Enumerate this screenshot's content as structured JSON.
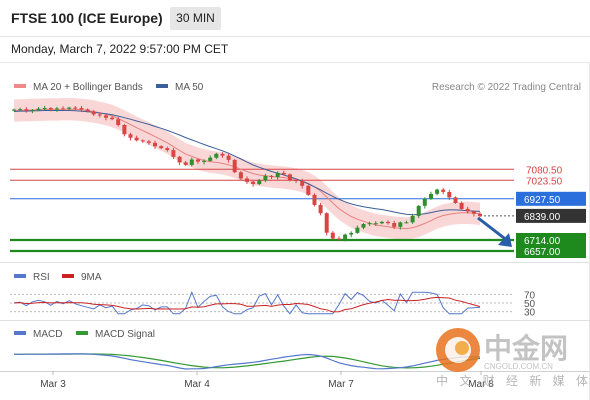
{
  "header": {
    "title": "FTSE 100 (ICE Europe)",
    "timeframe": "30 MIN",
    "datetime": "Monday, March 7, 2022 9:57:00 PM CET"
  },
  "price_panel": {
    "legend": [
      {
        "label": "MA 20 + Bollinger Bands",
        "color": "#f08a8a"
      },
      {
        "label": "MA 50",
        "color": "#3b5f9a"
      }
    ],
    "credit": "Research © 2022 Trading Central",
    "levels": [
      {
        "label": "7080.50",
        "value": 7080.5,
        "style": "resistance",
        "color": "#d94545"
      },
      {
        "label": "7023.50",
        "value": 7023.5,
        "style": "resistance",
        "color": "#d94545"
      },
      {
        "label": "6927.50",
        "value": 6927.5,
        "style": "pivot",
        "color": "#2a6fdb"
      },
      {
        "label": "6839.00",
        "value": 6839.0,
        "style": "last",
        "color": "#333333"
      },
      {
        "label": "6714.00",
        "value": 6714.0,
        "style": "support",
        "color": "#1e8a1e"
      },
      {
        "label": "6657.00",
        "value": 6657.0,
        "style": "support",
        "color": "#1e8a1e"
      }
    ]
  },
  "rsi_panel": {
    "legend": [
      {
        "label": "RSI",
        "color": "#5577cc"
      },
      {
        "label": "9MA",
        "color": "#cc2222"
      }
    ],
    "ticks": [
      "70",
      "50",
      "30"
    ]
  },
  "macd_panel": {
    "legend": [
      {
        "label": "MACD",
        "color": "#5577cc"
      },
      {
        "label": "MACD Signal",
        "color": "#339933"
      }
    ]
  },
  "x_axis": {
    "labels": [
      "Mar 3",
      "Mar 4",
      "Mar 7",
      "Mar 8"
    ]
  },
  "watermark": {
    "brand": "中金网",
    "url": "CNGOLD.COM.CN",
    "tagline": "中 文 财 经 新 媒 体"
  },
  "chart_data": {
    "type": "line",
    "title": "FTSE 100 (ICE Europe)",
    "timeframe": "30 MIN",
    "xlabel": "",
    "ylabel": "",
    "x_tick_labels": [
      "Mar 3",
      "Mar 4",
      "Mar 7",
      "Mar 8"
    ],
    "ylim": [
      6600,
      7450
    ],
    "close_series": [
      7390,
      7392,
      7385,
      7388,
      7395,
      7398,
      7392,
      7396,
      7394,
      7400,
      7398,
      7391,
      7380,
      7365,
      7360,
      7348,
      7340,
      7310,
      7262,
      7244,
      7230,
      7225,
      7218,
      7200,
      7190,
      7180,
      7145,
      7116,
      7103,
      7131,
      7120,
      7124,
      7141,
      7161,
      7151,
      7129,
      7065,
      7033,
      7016,
      7004,
      7022,
      7046,
      7041,
      7062,
      7054,
      7025,
      7020,
      6995,
      6948,
      6896,
      6853,
      6752,
      6722,
      6718,
      6742,
      6751,
      6778,
      6797,
      6801,
      6801,
      6808,
      6802,
      6782,
      6805,
      6806,
      6839,
      6891,
      6927,
      6953,
      6975,
      6963,
      6935,
      6906,
      6875,
      6862,
      6850,
      6839
    ],
    "ma50": [
      7380,
      7382,
      7382,
      7383,
      7384,
      7385,
      7385,
      7385,
      7385,
      7385,
      7384,
      7382,
      7379,
      7376,
      7372,
      7368,
      7363,
      7356,
      7348,
      7340,
      7331,
      7322,
      7313,
      7303,
      7293,
      7282,
      7270,
      7258,
      7245,
      7233,
      7221,
      7209,
      7198,
      7187,
      7176,
      7164,
      7149,
      7134,
      7118,
      7103,
      7091,
      7080,
      7069,
      7060,
      7051,
      7041,
      7031,
      7019,
      7005,
      6990,
      6974,
      6956,
      6940,
      6925,
      6912,
      6901,
      6893,
      6886,
      6881,
      6876,
      6872,
      6866,
      6859,
      6853,
      6847,
      6845,
      6846,
      6850,
      6856,
      6863,
      6868,
      6870,
      6870,
      6868,
      6866,
      6864,
      6862
    ],
    "ma20": [
      7385,
      7386,
      7387,
      7388,
      7389,
      7390,
      7391,
      7391,
      7392,
      7392,
      7391,
      7389,
      7385,
      7380,
      7373,
      7366,
      7357,
      7344,
      7328,
      7312,
      7296,
      7281,
      7266,
      7250,
      7234,
      7218,
      7198,
      7178,
      7159,
      7148,
      7136,
      7126,
      7120,
      7116,
      7111,
      7104,
      7093,
      7081,
      7069,
      7058,
      7051,
      7047,
      7043,
      7040,
      7038,
      7033,
      7028,
      7020,
      7008,
      6990,
      6967,
      6937,
      6906,
      6877,
      6855,
      6836,
      6822,
      6811,
      6801,
      6792,
      6787,
      6783,
      6778,
      6775,
      6773,
      6778,
      6787,
      6800,
      6814,
      6830,
      6841,
      6848,
      6853,
      6855,
      6855,
      6853,
      6850
    ],
    "bollinger": {
      "upper_offset": 58,
      "lower_offset": 58
    },
    "levels": [
      7080.5,
      7023.5,
      6927.5,
      6839.0,
      6714.0,
      6657.0
    ],
    "forecast_arrow": {
      "from_value": 6839.0,
      "to_value": 6657.0
    },
    "rsi": {
      "ylim": [
        0,
        100
      ],
      "ticks": [
        70,
        50,
        30
      ]
    },
    "macd": {
      "signal_offset": 0
    }
  }
}
